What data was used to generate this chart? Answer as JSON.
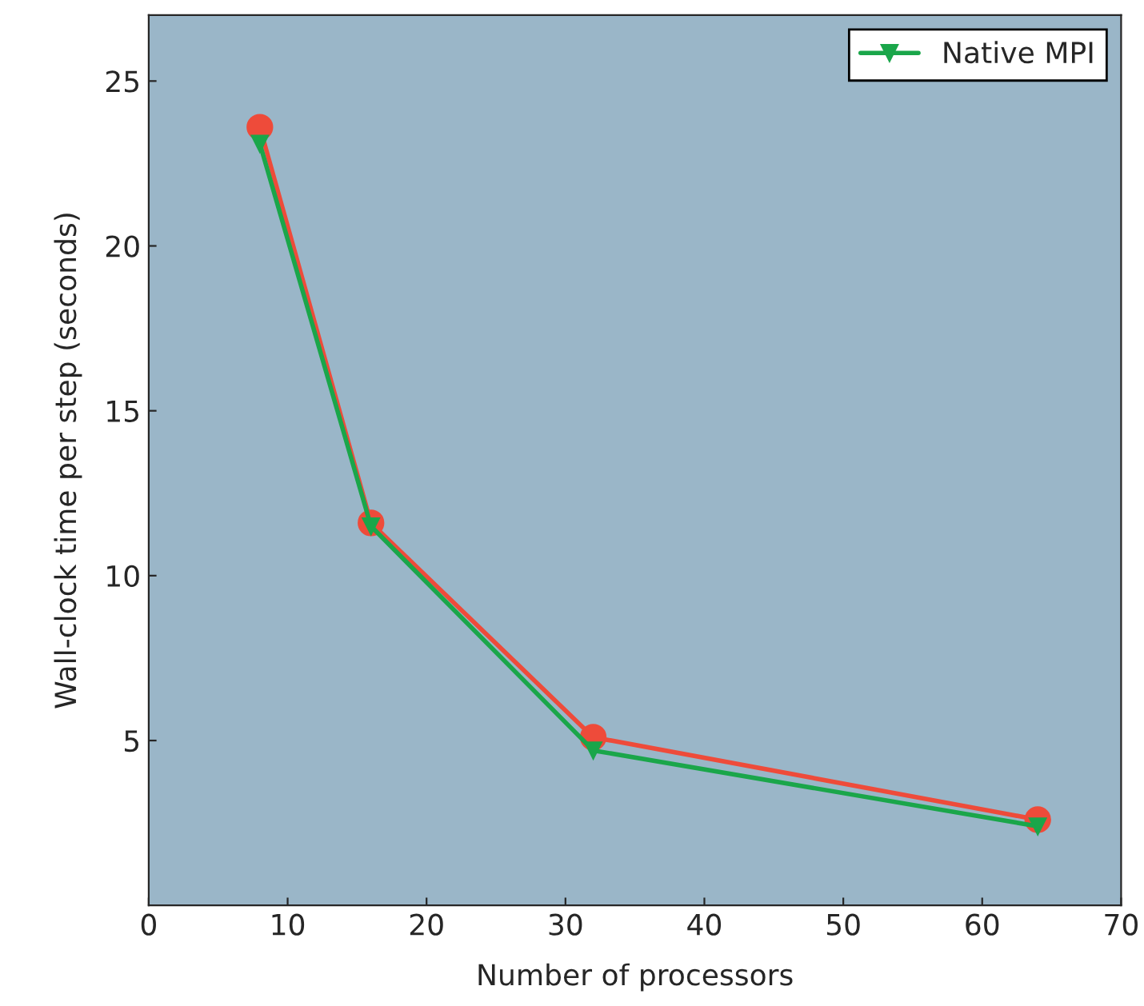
{
  "chart_data": {
    "type": "line",
    "xlabel": "Number of processors",
    "ylabel": "Wall-clock time per step (seconds)",
    "x": [
      8,
      16,
      32,
      64
    ],
    "series": [
      {
        "color": "#ee4b3a",
        "values": [
          23.6,
          11.6,
          5.1,
          2.6
        ],
        "marker": "circle"
      },
      {
        "name": "Native MPI",
        "color": "#1aa64a",
        "values": [
          23.1,
          11.5,
          4.7,
          2.4
        ],
        "marker": "triangle"
      }
    ],
    "xlim": [
      0,
      70
    ],
    "xticks": [
      0,
      10,
      20,
      30,
      40,
      50,
      60,
      70
    ],
    "ylim": [
      0,
      27
    ],
    "yticks": [
      5,
      10,
      15,
      20,
      25
    ],
    "grid": false,
    "legend": "top right",
    "line_style": "solid"
  }
}
